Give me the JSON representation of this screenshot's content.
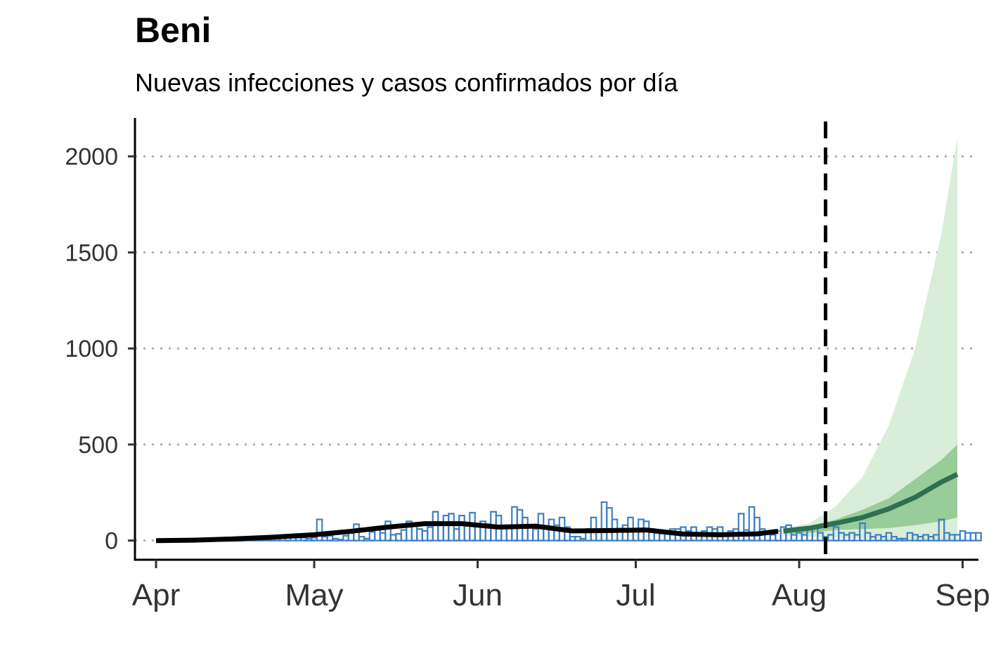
{
  "chart_data": {
    "type": "bar+line+area",
    "title": "Beni",
    "subtitle": "Nuevas infecciones y casos confirmados por día",
    "xlabel": "",
    "ylabel": "",
    "ylim": [
      -100,
      2200
    ],
    "xlim": [
      "2020-03-28",
      "2020-09-04"
    ],
    "x_ticks": [
      {
        "date": "2020-04-01",
        "label": "Apr"
      },
      {
        "date": "2020-05-01",
        "label": "May"
      },
      {
        "date": "2020-06-01",
        "label": "Jun"
      },
      {
        "date": "2020-07-01",
        "label": "Jul"
      },
      {
        "date": "2020-08-01",
        "label": "Aug"
      },
      {
        "date": "2020-09-01",
        "label": "Sep"
      }
    ],
    "y_ticks": [
      0,
      500,
      1000,
      1500,
      2000
    ],
    "grid": "horizontal-dotted",
    "forecast_date": "2020-08-06",
    "colors": {
      "bars": "#3f7fc4",
      "estimate_line": "#000000",
      "forecast_line": "#2e7050",
      "forecast_band_inner": "#98cc98",
      "forecast_band_outer": "#d9eed9",
      "grid": "#b0b0b0",
      "vline": "#000000"
    },
    "confirmed_cases": {
      "start_date": "2020-04-02",
      "values": [
        0,
        0,
        0,
        0,
        0,
        0,
        0,
        0,
        0,
        0,
        0,
        0,
        0,
        0,
        0,
        0,
        5,
        5,
        5,
        5,
        5,
        10,
        10,
        15,
        15,
        15,
        15,
        15,
        10,
        15,
        110,
        20,
        25,
        10,
        5,
        25,
        40,
        85,
        20,
        10,
        45,
        60,
        40,
        100,
        30,
        35,
        55,
        100,
        90,
        60,
        50,
        70,
        150,
        90,
        130,
        140,
        60,
        130,
        80,
        145,
        80,
        100,
        85,
        150,
        130,
        75,
        70,
        175,
        160,
        120,
        80,
        60,
        140,
        70,
        110,
        80,
        120,
        70,
        20,
        20,
        10,
        60,
        120,
        50,
        200,
        170,
        110,
        60,
        80,
        120,
        60,
        110,
        100,
        60,
        40,
        50,
        50,
        60,
        60,
        70,
        50,
        70,
        40,
        50,
        70,
        60,
        70,
        30,
        50,
        60,
        140,
        55,
        175,
        120,
        60,
        40,
        30,
        50,
        70,
        80,
        30,
        40,
        30,
        60,
        70,
        40,
        20,
        30,
        70,
        40,
        30,
        40,
        30,
        90,
        40,
        20,
        30,
        20,
        40,
        20,
        10,
        10,
        40,
        30,
        20,
        30,
        20,
        30,
        110,
        40,
        30,
        30,
        50,
        40,
        40,
        40
      ],
      "name": ""
    },
    "estimated_infections": {
      "x": [
        "2020-04-01",
        "2020-04-08",
        "2020-04-15",
        "2020-04-22",
        "2020-05-01",
        "2020-05-08",
        "2020-05-15",
        "2020-05-22",
        "2020-05-29",
        "2020-06-05",
        "2020-06-12",
        "2020-06-19",
        "2020-06-26",
        "2020-07-03",
        "2020-07-10",
        "2020-07-17",
        "2020-07-24",
        "2020-07-28"
      ],
      "y": [
        0,
        2,
        8,
        16,
        30,
        48,
        70,
        88,
        88,
        70,
        75,
        50,
        52,
        55,
        34,
        30,
        35,
        48
      ]
    },
    "forecast": {
      "x": [
        "2020-07-29",
        "2020-08-03",
        "2020-08-08",
        "2020-08-13",
        "2020-08-18",
        "2020-08-23",
        "2020-08-28",
        "2020-08-31"
      ],
      "median": [
        50,
        65,
        90,
        120,
        165,
        225,
        305,
        345
      ],
      "inner_lower": [
        35,
        40,
        55,
        60,
        65,
        80,
        100,
        120
      ],
      "inner_upper": [
        55,
        75,
        110,
        160,
        220,
        320,
        420,
        500
      ],
      "outer_lower": [
        25,
        20,
        15,
        10,
        5,
        0,
        0,
        0
      ],
      "outer_upper": [
        60,
        90,
        180,
        330,
        600,
        1000,
        1600,
        2100
      ]
    }
  }
}
